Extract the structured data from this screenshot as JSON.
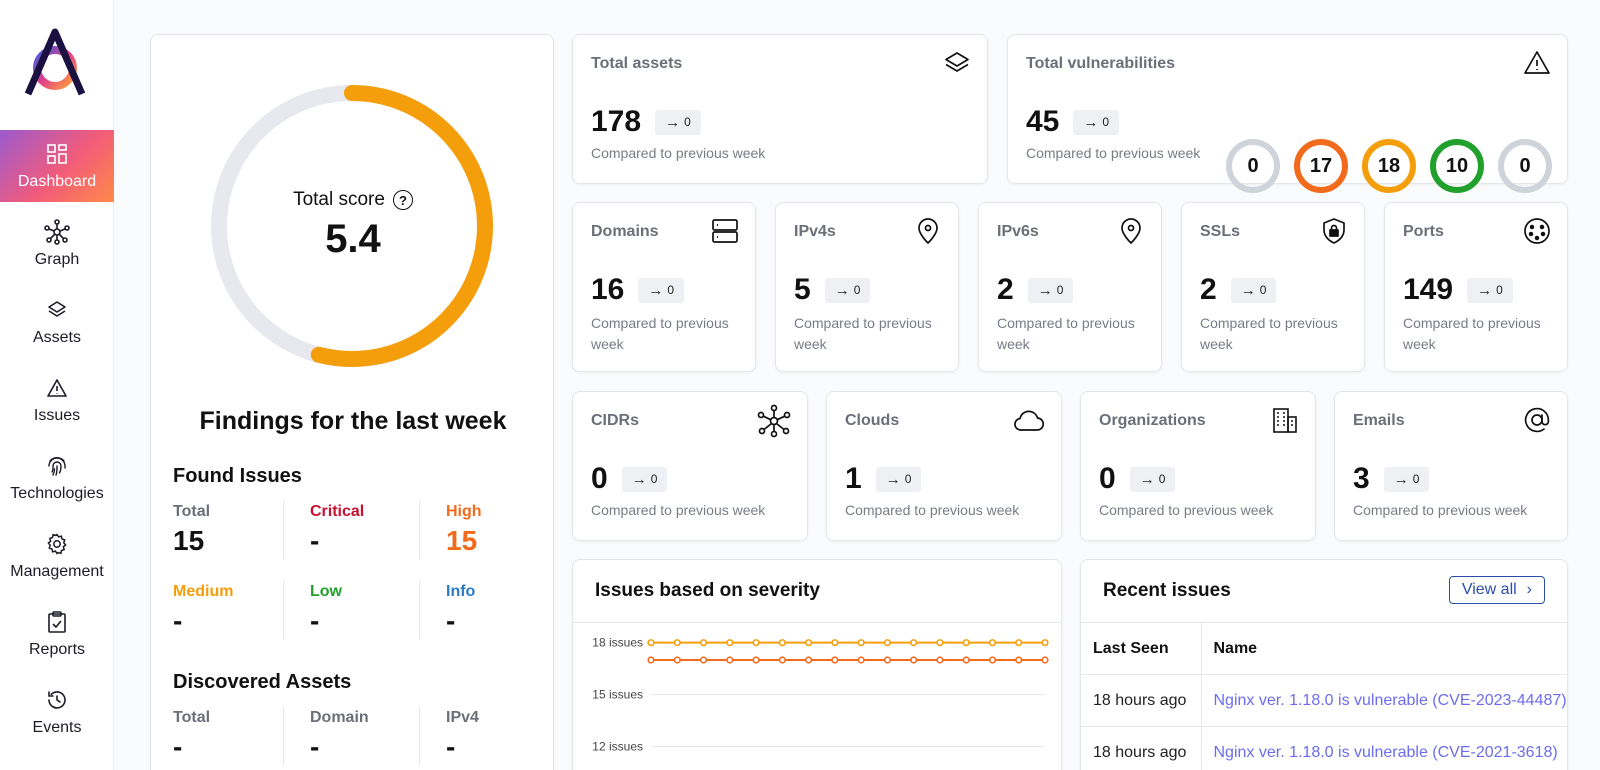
{
  "sidebar": {
    "items": [
      {
        "label": "Dashboard",
        "icon": "dashboard-icon",
        "active": true
      },
      {
        "label": "Graph",
        "icon": "graph-icon"
      },
      {
        "label": "Assets",
        "icon": "layers-icon"
      },
      {
        "label": "Issues",
        "icon": "warning-icon"
      },
      {
        "label": "Technologies",
        "icon": "fingerprint-icon"
      },
      {
        "label": "Management",
        "icon": "gear-icon"
      },
      {
        "label": "Reports",
        "icon": "clipboard-check-icon"
      },
      {
        "label": "Events",
        "icon": "history-icon"
      }
    ]
  },
  "score": {
    "label": "Total score",
    "value": "5.4",
    "ring_fraction": 0.54,
    "ring_color": "#f59e0b",
    "findings_title": "Findings for the last week",
    "found_issues": {
      "title": "Found Issues",
      "cells": [
        {
          "label": "Total",
          "value": "15",
          "label_color": "#6b6f78",
          "value_color": "#111111"
        },
        {
          "label": "Critical",
          "value": "-",
          "label_color": "#c8102e",
          "value_color": "#111111"
        },
        {
          "label": "High",
          "value": "15",
          "label_color": "#f26b1d",
          "value_color": "#f26b1d"
        },
        {
          "label": "Medium",
          "value": "-",
          "label_color": "#f59e0b",
          "value_color": "#111111"
        },
        {
          "label": "Low",
          "value": "-",
          "label_color": "#22a02c",
          "value_color": "#111111"
        },
        {
          "label": "Info",
          "value": "-",
          "label_color": "#2a7cc7",
          "value_color": "#111111"
        }
      ]
    },
    "discovered_assets": {
      "title": "Discovered Assets",
      "cells": [
        {
          "label": "Total",
          "value": "-"
        },
        {
          "label": "Domain",
          "value": "-"
        },
        {
          "label": "IPv4",
          "value": "-"
        }
      ]
    }
  },
  "compare_text": "Compared to previous week",
  "change_text": "0",
  "total_assets": {
    "title": "Total assets",
    "value": "178",
    "icon": "layers-icon"
  },
  "total_vulnerabilities": {
    "title": "Total vulnerabilities",
    "value": "45",
    "icon": "warning-icon",
    "severity": [
      {
        "value": "0",
        "color": "#cfd3da"
      },
      {
        "value": "17",
        "color": "#f26b1d"
      },
      {
        "value": "18",
        "color": "#f59e0b"
      },
      {
        "value": "10",
        "color": "#22a02c"
      },
      {
        "value": "0",
        "color": "#cfd3da"
      }
    ]
  },
  "small_cards": [
    {
      "title": "Domains",
      "value": "16",
      "icon": "server-icon"
    },
    {
      "title": "IPv4s",
      "value": "5",
      "icon": "location-pin-icon"
    },
    {
      "title": "IPv6s",
      "value": "2",
      "icon": "location-pin-icon"
    },
    {
      "title": "SSLs",
      "value": "2",
      "icon": "shield-lock-icon"
    },
    {
      "title": "Ports",
      "value": "149",
      "icon": "port-icon"
    }
  ],
  "mid_cards": [
    {
      "title": "CIDRs",
      "value": "0",
      "icon": "network-icon"
    },
    {
      "title": "Clouds",
      "value": "1",
      "icon": "cloud-icon"
    },
    {
      "title": "Organizations",
      "value": "0",
      "icon": "building-icon"
    },
    {
      "title": "Emails",
      "value": "3",
      "icon": "at-sign-icon"
    }
  ],
  "severity_chart": {
    "title": "Issues based on severity"
  },
  "chart_data": {
    "type": "line",
    "ytick_labels": [
      "18 issues",
      "15 issues",
      "12 issues"
    ],
    "yticks": [
      18,
      15,
      12
    ],
    "series": [
      {
        "values": [
          18,
          18,
          18,
          18,
          18,
          18,
          18,
          18,
          18,
          18,
          18,
          18,
          18,
          18,
          18,
          18
        ],
        "color": "#f59e0b"
      },
      {
        "values": [
          17,
          17,
          17,
          17,
          17,
          17,
          17,
          17,
          17,
          17,
          17,
          17,
          17,
          17,
          17,
          17
        ],
        "color": "#f26b1d"
      }
    ],
    "grid": true
  },
  "recent_issues": {
    "title": "Recent issues",
    "view_all": "View all",
    "columns": [
      "Last Seen",
      "Name"
    ],
    "rows": [
      {
        "last_seen": "18 hours ago",
        "name": "Nginx ver. 1.18.0 is vulnerable (CVE-2023-44487)"
      },
      {
        "last_seen": "18 hours ago",
        "name": "Nginx ver. 1.18.0 is vulnerable (CVE-2021-3618)"
      }
    ]
  }
}
